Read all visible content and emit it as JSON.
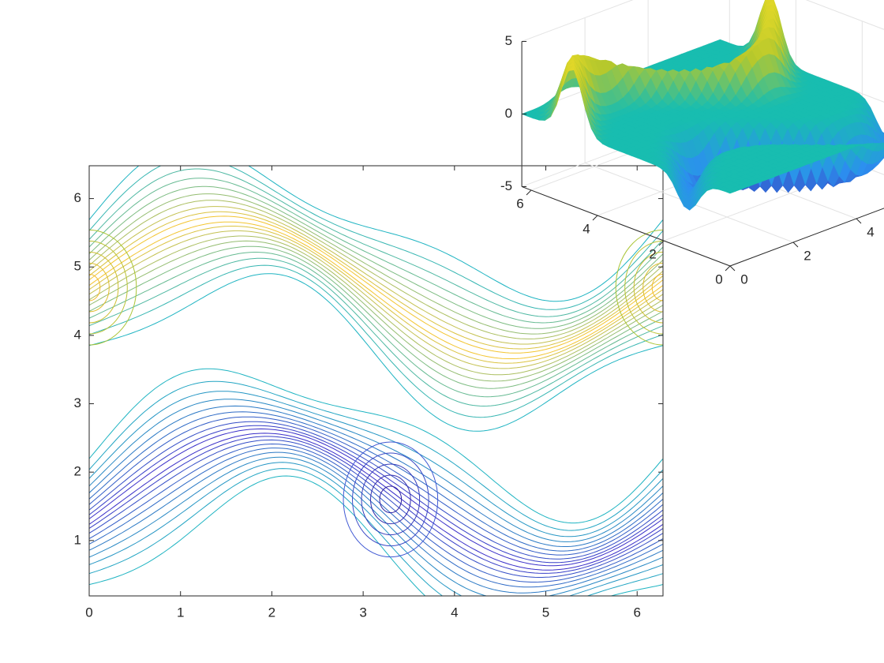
{
  "chart_data": [
    {
      "type": "contour",
      "xlim": [
        0,
        6.2832
      ],
      "ylim": [
        0.19,
        6.48
      ],
      "xticks": [
        0,
        1,
        2,
        3,
        4,
        5,
        6
      ],
      "yticks": [
        1,
        2,
        3,
        4,
        5,
        6
      ]
    },
    {
      "type": "surface",
      "xlim": [
        0,
        6.2832
      ],
      "ylim": [
        0,
        6.2832
      ],
      "zlim": [
        -5,
        5
      ],
      "xticks": [
        0,
        2,
        4
      ],
      "yticks": [
        0,
        2,
        4,
        6
      ],
      "zticks": [
        -5,
        0,
        5
      ],
      "grid": true
    }
  ]
}
